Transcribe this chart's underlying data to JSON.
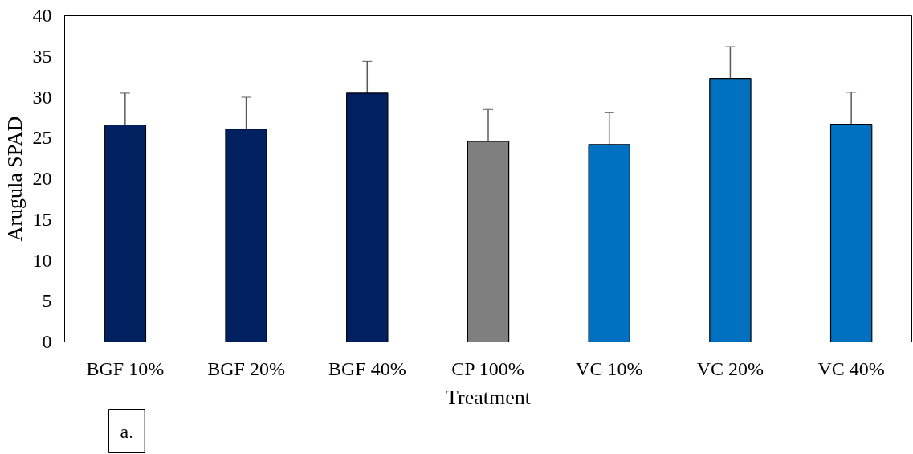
{
  "chart_data": {
    "type": "bar",
    "xlabel": "Treatment",
    "ylabel": "Arugula SPAD",
    "categories": [
      "BGF 10%",
      "BGF 20%",
      "BGF 40%",
      "CP 100%",
      "VC 10%",
      "VC 20%",
      "VC 40%"
    ],
    "values": [
      26.6,
      26.1,
      30.5,
      24.6,
      24.2,
      32.3,
      26.7
    ],
    "colors": [
      "#002060",
      "#002060",
      "#002060",
      "#7f7f7f",
      "#0070c0",
      "#0070c0",
      "#0070c0"
    ],
    "errors": [
      3.9,
      3.9,
      3.9,
      3.9,
      3.9,
      3.9,
      3.9
    ],
    "ylim": [
      0,
      40
    ],
    "yticks": [
      0,
      5,
      10,
      15,
      20,
      25,
      30,
      35,
      40
    ],
    "grid": false,
    "annotations": [
      "a."
    ]
  }
}
